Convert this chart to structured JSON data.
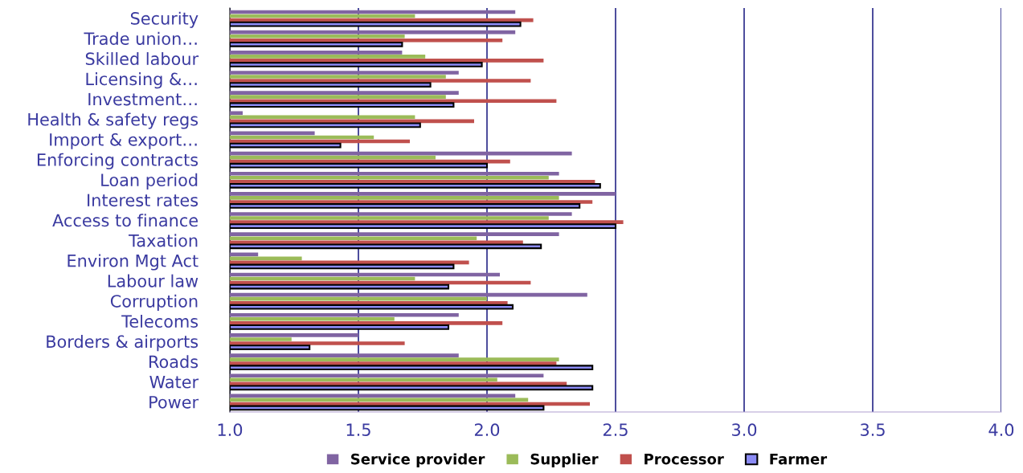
{
  "chart_data": {
    "type": "bar",
    "orientation": "horizontal",
    "categories": [
      "Security",
      "Trade union…",
      "Skilled labour",
      "Licensing &…",
      "Investment…",
      "Health & safety regs",
      "Import & export…",
      "Enforcing contracts",
      "Loan period",
      "Interest rates",
      "Access to finance",
      "Taxation",
      "Environ Mgt Act",
      "Labour law",
      "Corruption",
      "Telecoms",
      "Borders & airports",
      "Roads",
      "Water",
      "Power"
    ],
    "series": [
      {
        "name": "Service provider",
        "color": "#8064a2",
        "values": [
          2.11,
          2.11,
          1.67,
          1.89,
          1.89,
          1.05,
          1.33,
          2.33,
          2.28,
          2.5,
          2.33,
          2.28,
          1.11,
          2.05,
          2.39,
          1.89,
          1.5,
          1.89,
          2.22,
          2.11
        ]
      },
      {
        "name": "Supplier",
        "color": "#9bbb59",
        "values": [
          1.72,
          1.68,
          1.76,
          1.84,
          1.84,
          1.72,
          1.56,
          1.8,
          2.24,
          2.28,
          2.24,
          1.96,
          1.28,
          1.72,
          2.0,
          1.64,
          1.24,
          2.28,
          2.04,
          2.16
        ]
      },
      {
        "name": "Processor",
        "color": "#c0504d",
        "values": [
          2.18,
          2.06,
          2.22,
          2.17,
          2.27,
          1.95,
          1.7,
          2.09,
          2.42,
          2.41,
          2.53,
          2.14,
          1.93,
          2.17,
          2.08,
          2.06,
          1.68,
          2.27,
          2.31,
          2.4
        ]
      },
      {
        "name": "Farmer",
        "color": "#8b8bf5",
        "values": [
          2.13,
          1.67,
          1.98,
          1.78,
          1.87,
          1.74,
          1.43,
          2.0,
          2.44,
          2.36,
          2.5,
          2.21,
          1.87,
          1.85,
          2.1,
          1.85,
          1.31,
          2.41,
          2.41,
          2.22
        ]
      }
    ],
    "xlim": [
      1.0,
      4.0
    ],
    "xticks": [
      {
        "value": 1.0,
        "label": "1.0"
      },
      {
        "value": 1.5,
        "label": "1.5"
      },
      {
        "value": 2.0,
        "label": "2.0"
      },
      {
        "value": 2.5,
        "label": "2.5"
      },
      {
        "value": 3.0,
        "label": "3.0"
      },
      {
        "value": 3.5,
        "label": "3.5"
      },
      {
        "value": 4.0,
        "label": "4.0"
      }
    ],
    "grid": "x",
    "legend": "bottom"
  }
}
